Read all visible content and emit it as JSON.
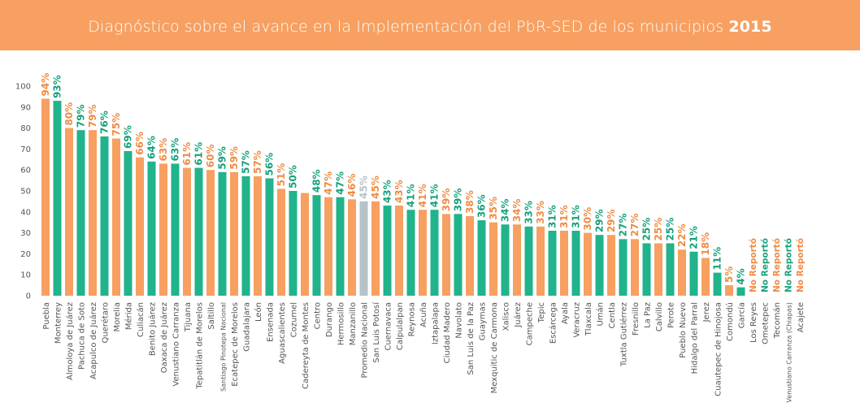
{
  "header": {
    "title": "Diagnóstico sobre el avance en la Implementación del PbR-SED de los municipios",
    "year": "2015"
  },
  "colors": {
    "header_bg": "#f7a061",
    "orange": "#f7a061",
    "green": "#21b38b",
    "gray": "#b6c2c7",
    "orange_text": "#f08c45",
    "green_text": "#17a27c",
    "axis_text": "#555555"
  },
  "chart_data": {
    "type": "bar",
    "ylim": [
      0,
      100
    ],
    "yticks": [
      "0",
      "10",
      "20",
      "30",
      "40",
      "50",
      "60",
      "70",
      "80",
      "90",
      "100"
    ],
    "grid": false,
    "categories": [
      "Puebla",
      "Monterrey",
      "Almoloya de Juárez",
      "Pachuca de Soto",
      "Acapulco de Juárez",
      "Querétaro",
      "Morelia",
      "Mérida",
      "Culiacán",
      "Benito Juárez",
      "Oaxaca de Juárez",
      "Venustiano Carranza",
      "Tijuana",
      "Tepatitlán de Morelos",
      "Saltillo",
      "Santiago Pinotepa Nacional",
      "Ecatepec de Morelos",
      "Guadalajara",
      "León",
      "Ensenada",
      "Aguascalientes",
      "Cozumel",
      "Cadereyta de Montes",
      "Centro",
      "Durango",
      "Hermosillo",
      "Manzanillo",
      "Promedio Nacional",
      "San Luis Potosí",
      "Cuernavaca",
      "Calpulalpan",
      "Reynosa",
      "Acuña",
      "Iztapalapa",
      "Ciudad Madero",
      "Navolato",
      "San Luis de la Paz",
      "Guaymas",
      "Mexquitic de Carmona",
      "Xalisco",
      "Juárez",
      "Campeche",
      "Tepic",
      "Escárcega",
      "Ayala",
      "Veracruz",
      "Tlaxcala",
      "Umán",
      "Centla",
      "Tuxtla Gutiérrez",
      "Fresnillo",
      "La Paz",
      "Calvillo",
      "Perote",
      "Pueblo Nuevo",
      "Hidalgo del Parral",
      "Jerez",
      "Cuautepec de Hinojosa",
      "Comondú",
      "García",
      "Los Reyes",
      "Ometepec",
      "Tecomán",
      "Venustiano Carranza (Chiapas)",
      "Acajete"
    ],
    "values": [
      94,
      93,
      80,
      79,
      79,
      76,
      75,
      69,
      66,
      64,
      63,
      63,
      61,
      61,
      60,
      59,
      59,
      57,
      57,
      56,
      51,
      50,
      49,
      48,
      47,
      47,
      46,
      45,
      45,
      43,
      43,
      41,
      41,
      41,
      39,
      39,
      38,
      36,
      35,
      34,
      34,
      33,
      33,
      31,
      31,
      31,
      30,
      29,
      29,
      27,
      27,
      25,
      25,
      25,
      22,
      21,
      18,
      11,
      5,
      4,
      null,
      null,
      null,
      null,
      null
    ],
    "value_labels": [
      "94%",
      "93%",
      "80%",
      "79%",
      "79%",
      "76%",
      "75%",
      "69%",
      "66%",
      "64%",
      "63%",
      "63%",
      "61%",
      "61%",
      "60%",
      "59%",
      "59%",
      "57%",
      "57%",
      "56%",
      "51%",
      "50%",
      "",
      "48%",
      "47%",
      "47%",
      "46%",
      "45%",
      "45%",
      "43%",
      "43%",
      "41%",
      "41%",
      "41%",
      "39%",
      "39%",
      "38%",
      "36%",
      "35%",
      "34%",
      "34%",
      "33%",
      "33%",
      "31%",
      "31%",
      "31%",
      "30%",
      "29%",
      "29%",
      "27%",
      "27%",
      "25%",
      "25%",
      "25%",
      "22%",
      "21%",
      "18%",
      "11%",
      "5%",
      "4%",
      "No Reportó",
      "No Reportó",
      "No Reportó",
      "No Reportó",
      "No Reportó"
    ],
    "bar_colors": [
      "orange",
      "green",
      "orange",
      "green",
      "orange",
      "green",
      "orange",
      "green",
      "orange",
      "green",
      "orange",
      "green",
      "orange",
      "green",
      "orange",
      "green",
      "orange",
      "green",
      "orange",
      "green",
      "orange",
      "green",
      "orange",
      "green",
      "orange",
      "green",
      "orange",
      "gray",
      "orange",
      "green",
      "orange",
      "green",
      "orange",
      "green",
      "orange",
      "green",
      "orange",
      "green",
      "orange",
      "green",
      "orange",
      "green",
      "orange",
      "green",
      "orange",
      "green",
      "orange",
      "green",
      "orange",
      "green",
      "orange",
      "green",
      "orange",
      "green",
      "orange",
      "green",
      "orange",
      "green",
      "orange",
      "green",
      "orange",
      "green",
      "orange",
      "green",
      "orange"
    ]
  }
}
